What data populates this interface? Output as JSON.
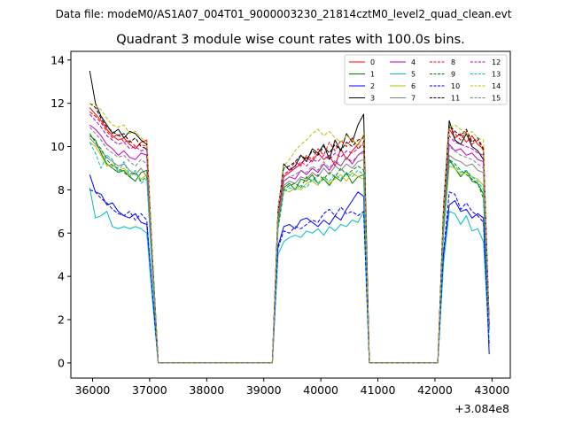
{
  "suptitle": "Data file: modeM0/AS1A07_004T01_9000003230_21814cztM0_level2_quad_clean.evt",
  "chart_data": {
    "type": "line",
    "title": "Quadrant 3 module wise count rates with 100.0s bins.",
    "xlabel": "",
    "ylabel": "",
    "x_offset_label": "+3.084e8",
    "xlim": [
      35620,
      43320
    ],
    "ylim": [
      -0.7,
      14.4
    ],
    "x_ticks": [
      36000,
      37000,
      38000,
      39000,
      40000,
      41000,
      42000,
      43000
    ],
    "x_tick_labels": [
      "36000",
      "37000",
      "38000",
      "39000",
      "40000",
      "41000",
      "42000",
      "43000"
    ],
    "y_ticks": [
      0,
      2,
      4,
      6,
      8,
      10,
      12,
      14
    ],
    "y_tick_labels": [
      "0",
      "2",
      "4",
      "6",
      "8",
      "10",
      "12",
      "14"
    ],
    "legend": {
      "position": "top-right",
      "columns": 4
    },
    "x": [
      35950,
      36050,
      36150,
      36250,
      36350,
      36450,
      36550,
      36650,
      36750,
      36850,
      36950,
      37050,
      37150,
      39150,
      39250,
      39350,
      39450,
      39550,
      39650,
      39750,
      39850,
      39950,
      40050,
      40150,
      40250,
      40350,
      40450,
      40550,
      40650,
      40750,
      40850,
      42050,
      42150,
      42250,
      42350,
      42450,
      42550,
      42650,
      42750,
      42850,
      42950
    ],
    "gaps": [
      [
        37150,
        39150
      ],
      [
        40850,
        42050
      ]
    ],
    "series": [
      {
        "name": "0",
        "color": "#ff0000",
        "dash": "solid",
        "values": [
          11.8,
          11.5,
          11.2,
          10.8,
          10.5,
          10.3,
          10.4,
          10.1,
          9.9,
          10.2,
          10.3,
          4.8,
          0.0,
          0.0,
          6.9,
          8.6,
          8.8,
          9.0,
          9.2,
          9.5,
          9.3,
          9.7,
          9.4,
          9.6,
          9.1,
          9.9,
          9.4,
          9.8,
          10.1,
          10.5,
          0.0,
          0.0,
          6.9,
          10.8,
          10.4,
          10.6,
          10.2,
          10.5,
          10.1,
          9.9,
          1.8
        ]
      },
      {
        "name": "1",
        "color": "#008000",
        "dash": "solid",
        "values": [
          10.5,
          10.3,
          9.7,
          9.2,
          9.0,
          8.8,
          8.9,
          8.6,
          8.4,
          8.8,
          8.9,
          4.2,
          0.0,
          0.0,
          6.4,
          8.1,
          8.3,
          8.0,
          8.5,
          8.4,
          8.7,
          8.3,
          8.5,
          8.2,
          8.6,
          8.4,
          8.8,
          8.3,
          8.6,
          8.7,
          0.0,
          0.0,
          6.1,
          9.4,
          9.0,
          8.6,
          8.9,
          8.4,
          8.3,
          7.8,
          1.5
        ]
      },
      {
        "name": "2",
        "color": "#0000ff",
        "dash": "solid",
        "values": [
          8.7,
          7.9,
          7.8,
          7.3,
          7.4,
          7.0,
          6.8,
          6.7,
          6.9,
          6.5,
          6.4,
          3.1,
          0.0,
          0.0,
          5.4,
          6.3,
          6.4,
          6.2,
          6.6,
          6.7,
          6.5,
          6.3,
          6.6,
          6.4,
          6.8,
          6.6,
          7.1,
          7.5,
          7.9,
          7.7,
          0.0,
          0.0,
          5.0,
          7.3,
          7.5,
          7.0,
          7.1,
          6.7,
          6.9,
          6.7,
          0.4
        ]
      },
      {
        "name": "3",
        "color": "#000000",
        "dash": "solid",
        "values": [
          13.5,
          12.0,
          11.4,
          11.0,
          10.6,
          10.8,
          10.4,
          10.7,
          10.6,
          10.3,
          10.1,
          4.9,
          0.0,
          0.0,
          7.0,
          9.2,
          8.9,
          9.1,
          9.6,
          9.3,
          9.9,
          9.7,
          10.1,
          9.4,
          10.3,
          9.8,
          10.6,
          10.2,
          11.0,
          11.5,
          0.0,
          0.0,
          7.2,
          11.2,
          10.3,
          10.1,
          10.6,
          10.0,
          9.8,
          9.4,
          1.8
        ]
      },
      {
        "name": "4",
        "color": "#bf00bf",
        "dash": "solid",
        "values": [
          11.0,
          10.8,
          10.5,
          10.1,
          9.9,
          9.6,
          9.8,
          9.5,
          9.4,
          9.7,
          9.6,
          4.6,
          0.0,
          0.0,
          6.6,
          8.4,
          8.6,
          8.5,
          8.9,
          8.7,
          9.0,
          8.8,
          9.2,
          8.9,
          9.3,
          9.1,
          9.5,
          9.2,
          9.6,
          9.8,
          0.0,
          0.0,
          6.6,
          10.1,
          9.8,
          9.9,
          9.6,
          9.7,
          9.4,
          9.3,
          1.7
        ]
      },
      {
        "name": "5",
        "color": "#00bfbf",
        "dash": "solid",
        "values": [
          8.1,
          6.7,
          6.8,
          7.0,
          6.3,
          6.2,
          6.3,
          6.2,
          6.3,
          6.2,
          6.0,
          2.9,
          0.0,
          0.0,
          5.0,
          5.6,
          5.8,
          5.9,
          5.8,
          6.1,
          6.0,
          6.2,
          5.9,
          6.3,
          6.1,
          6.4,
          6.3,
          6.6,
          6.5,
          7.0,
          0.0,
          0.0,
          4.6,
          7.0,
          6.9,
          6.4,
          6.8,
          6.1,
          6.2,
          5.6,
          0.9
        ]
      },
      {
        "name": "6",
        "color": "#bfbf00",
        "dash": "solid",
        "values": [
          10.2,
          10.0,
          9.6,
          9.1,
          9.2,
          8.9,
          9.0,
          8.7,
          8.8,
          8.5,
          8.7,
          4.2,
          0.0,
          0.0,
          6.3,
          8.0,
          7.9,
          8.1,
          8.0,
          8.3,
          8.4,
          8.2,
          8.6,
          8.3,
          8.5,
          8.7,
          8.4,
          8.8,
          8.6,
          8.5,
          0.0,
          0.0,
          6.0,
          9.1,
          9.0,
          8.7,
          8.8,
          8.6,
          8.5,
          8.2,
          1.5
        ]
      },
      {
        "name": "7",
        "color": "#808080",
        "dash": "solid",
        "values": [
          10.4,
          10.1,
          9.8,
          9.5,
          9.3,
          9.1,
          9.2,
          8.9,
          8.7,
          9.0,
          8.6,
          4.3,
          0.0,
          0.0,
          6.5,
          8.2,
          8.4,
          8.3,
          8.6,
          8.5,
          8.8,
          8.6,
          9.0,
          8.7,
          9.1,
          8.9,
          9.2,
          9.0,
          9.3,
          9.4,
          0.0,
          0.0,
          6.4,
          9.6,
          9.4,
          9.3,
          9.1,
          9.2,
          8.9,
          8.8,
          1.6
        ]
      },
      {
        "name": "8",
        "color": "#ff0000",
        "dash": "dashed",
        "values": [
          11.6,
          11.4,
          11.1,
          10.7,
          10.4,
          10.6,
          10.2,
          10.3,
          10.0,
          10.1,
          10.0,
          4.8,
          0.0,
          0.0,
          6.8,
          8.7,
          8.9,
          9.3,
          9.1,
          9.6,
          9.4,
          9.9,
          9.6,
          10.2,
          9.8,
          10.3,
          10.0,
          10.4,
          9.9,
          10.2,
          0.0,
          0.0,
          7.0,
          10.9,
          10.6,
          10.3,
          10.7,
          10.1,
          10.3,
          9.8,
          1.8
        ]
      },
      {
        "name": "9",
        "color": "#008000",
        "dash": "dashed",
        "values": [
          10.6,
          10.2,
          9.9,
          9.4,
          9.1,
          9.0,
          8.8,
          8.6,
          8.8,
          8.4,
          8.6,
          4.1,
          0.0,
          0.0,
          6.3,
          8.0,
          8.2,
          8.3,
          8.1,
          8.6,
          8.4,
          8.7,
          8.5,
          8.8,
          8.6,
          9.0,
          8.7,
          8.9,
          9.1,
          8.9,
          0.0,
          0.0,
          6.2,
          9.4,
          9.2,
          8.9,
          8.7,
          8.5,
          8.3,
          7.6,
          1.5
        ]
      },
      {
        "name": "10",
        "color": "#0000ff",
        "dash": "dashed",
        "values": [
          8.0,
          7.9,
          7.6,
          7.4,
          7.1,
          6.9,
          6.8,
          7.0,
          6.6,
          6.9,
          6.6,
          3.2,
          0.0,
          0.0,
          5.3,
          6.1,
          6.0,
          6.3,
          6.2,
          6.4,
          6.6,
          6.5,
          6.9,
          7.1,
          6.8,
          7.2,
          6.9,
          7.0,
          6.8,
          7.0,
          0.0,
          0.0,
          5.1,
          7.9,
          7.8,
          7.1,
          7.4,
          7.0,
          6.8,
          6.5,
          0.8
        ]
      },
      {
        "name": "11",
        "color": "#000000",
        "dash": "dashed",
        "values": [
          12.0,
          11.8,
          11.3,
          10.9,
          10.7,
          10.5,
          10.6,
          10.2,
          10.4,
          10.0,
          9.9,
          4.8,
          0.0,
          0.0,
          7.1,
          9.0,
          9.1,
          9.3,
          9.6,
          9.4,
          9.8,
          9.6,
          10.0,
          9.7,
          10.1,
          9.8,
          10.2,
          10.0,
          10.3,
          10.4,
          0.0,
          0.0,
          7.1,
          11.0,
          10.7,
          10.5,
          10.8,
          10.2,
          10.4,
          9.9,
          1.8
        ]
      },
      {
        "name": "12",
        "color": "#bf00bf",
        "dash": "dashed",
        "values": [
          11.5,
          11.2,
          10.9,
          10.5,
          10.3,
          10.1,
          10.2,
          9.9,
          10.0,
          9.8,
          9.9,
          4.7,
          0.0,
          0.0,
          6.7,
          8.7,
          8.9,
          9.0,
          9.3,
          9.1,
          9.4,
          9.3,
          9.6,
          9.4,
          9.7,
          9.5,
          9.8,
          9.7,
          9.9,
          10.1,
          0.0,
          0.0,
          6.8,
          10.5,
          10.2,
          10.1,
          10.0,
          9.9,
          9.7,
          9.6,
          1.7
        ]
      },
      {
        "name": "13",
        "color": "#00bfbf",
        "dash": "dashed",
        "values": [
          10.2,
          9.7,
          9.0,
          9.6,
          9.4,
          8.8,
          9.3,
          8.7,
          8.9,
          8.3,
          8.5,
          4.0,
          0.0,
          0.0,
          6.1,
          7.9,
          8.1,
          8.0,
          8.2,
          8.1,
          8.5,
          8.3,
          8.6,
          8.4,
          8.7,
          8.5,
          8.8,
          8.6,
          8.9,
          8.7,
          0.0,
          0.0,
          6.0,
          9.3,
          9.1,
          8.8,
          8.9,
          8.6,
          8.4,
          8.0,
          1.4
        ]
      },
      {
        "name": "14",
        "color": "#bfbf00",
        "dash": "dashed",
        "values": [
          12.0,
          11.9,
          11.7,
          11.3,
          11.0,
          10.9,
          11.0,
          10.6,
          10.7,
          10.4,
          10.2,
          4.9,
          0.0,
          0.0,
          7.0,
          9.1,
          9.4,
          9.8,
          10.1,
          10.3,
          10.6,
          10.8,
          10.5,
          10.7,
          10.4,
          10.2,
          10.5,
          10.3,
          10.0,
          10.6,
          0.0,
          0.0,
          7.1,
          10.9,
          11.0,
          10.8,
          10.5,
          10.7,
          10.4,
          10.3,
          1.8
        ]
      },
      {
        "name": "15",
        "color": "#808080",
        "dash": "dashed",
        "values": [
          10.9,
          10.6,
          10.3,
          9.9,
          9.7,
          9.5,
          9.6,
          9.3,
          9.1,
          9.4,
          9.2,
          4.5,
          0.0,
          0.0,
          6.6,
          8.4,
          8.6,
          8.7,
          8.9,
          8.8,
          9.1,
          8.9,
          9.3,
          9.0,
          9.4,
          9.1,
          9.5,
          9.3,
          9.6,
          9.7,
          0.0,
          0.0,
          6.5,
          10.0,
          9.8,
          9.6,
          9.5,
          9.4,
          9.2,
          9.0,
          1.6
        ]
      }
    ]
  }
}
